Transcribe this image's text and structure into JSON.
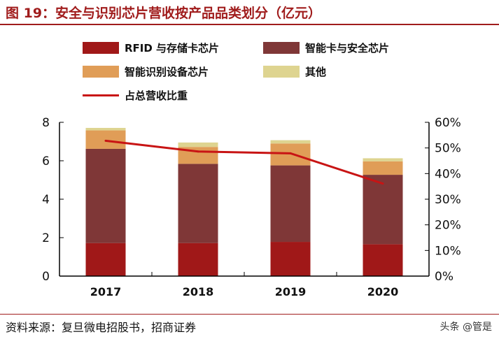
{
  "title": "图 19：安全与识别芯片营收按产品品类划分（亿元）",
  "source": "资料来源：复旦微电招股书，招商证券",
  "watermark": "头条 @管是",
  "chart_data": {
    "type": "bar",
    "stacked": true,
    "categories": [
      "2017",
      "2018",
      "2019",
      "2020"
    ],
    "series": [
      {
        "name": "RFID 与存储卡芯片",
        "color": "#a01818",
        "values": [
          1.72,
          1.72,
          1.78,
          1.66
        ]
      },
      {
        "name": "智能卡与安全芯片",
        "color": "#7f3737",
        "values": [
          4.9,
          4.12,
          3.98,
          3.61
        ]
      },
      {
        "name": "智能识别设备芯片",
        "color": "#e09d57",
        "values": [
          0.96,
          0.88,
          1.14,
          0.7
        ]
      },
      {
        "name": "其他",
        "color": "#ded490",
        "values": [
          0.13,
          0.23,
          0.17,
          0.16
        ]
      }
    ],
    "line": {
      "name": "占总营收比重",
      "color": "#c81414",
      "axis": "right",
      "values": [
        52.8,
        48.6,
        47.9,
        36.1
      ]
    },
    "ylim": [
      0,
      8
    ],
    "yticks": [
      "0",
      "2",
      "4",
      "6",
      "8"
    ],
    "y2lim": [
      0,
      60
    ],
    "y2ticks": [
      "0%",
      "10%",
      "20%",
      "30%",
      "40%",
      "50%",
      "60%"
    ],
    "legend": "top",
    "grid": false
  }
}
